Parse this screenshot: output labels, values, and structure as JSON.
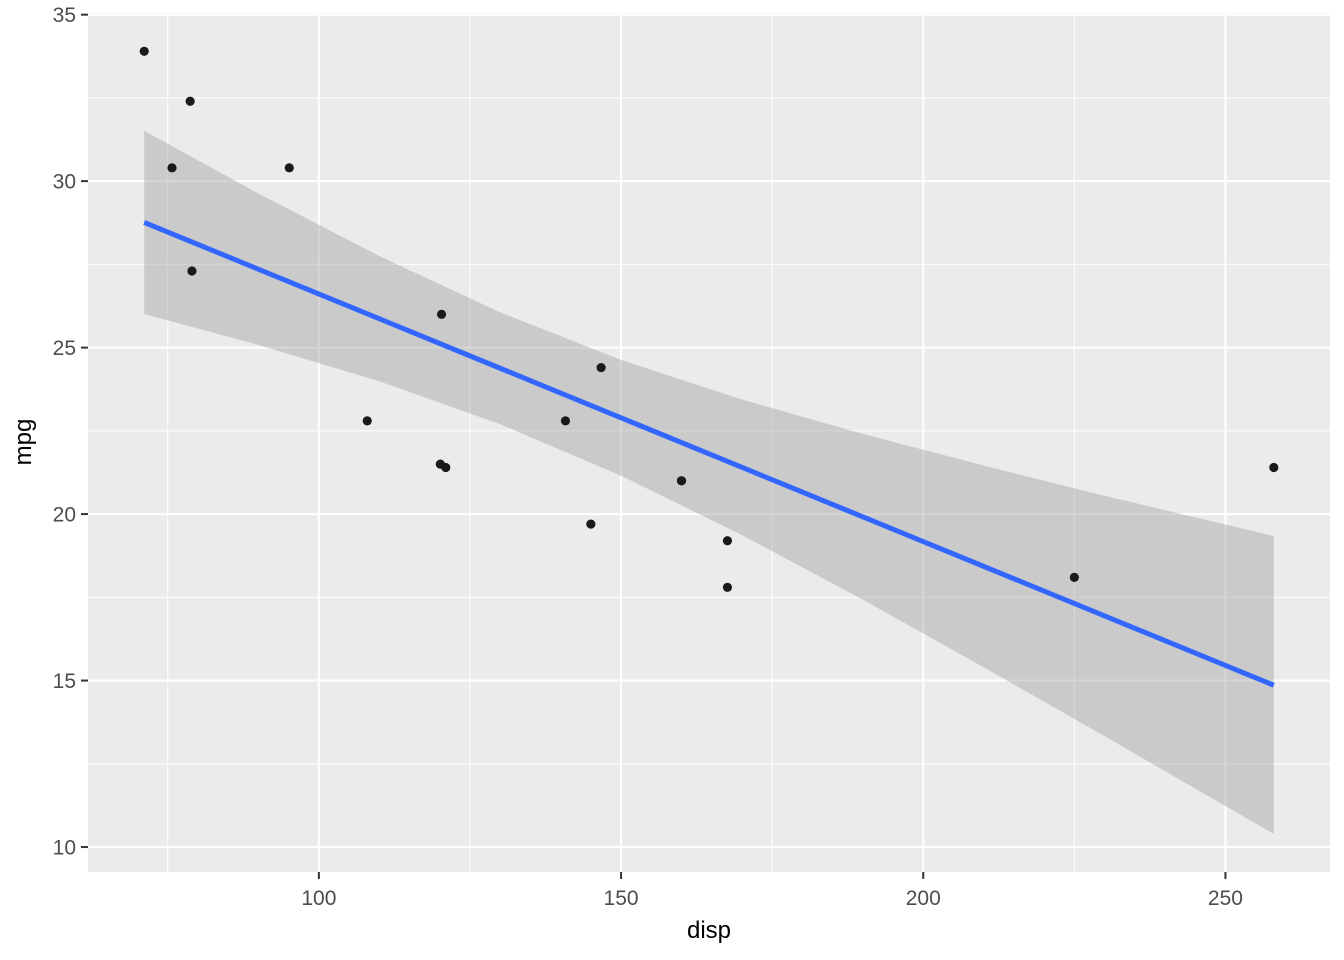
{
  "chart_data": {
    "type": "scatter",
    "title": "",
    "xlabel": "disp",
    "ylabel": "mpg",
    "xlim": [
      61.8,
      267.3
    ],
    "ylim": [
      9.25,
      35.05
    ],
    "x_ticks": [
      100,
      150,
      200,
      250
    ],
    "y_ticks": [
      10,
      15,
      20,
      25,
      30,
      35
    ],
    "x_minor_ticks": [
      75,
      125,
      175,
      225
    ],
    "y_minor_ticks": [
      12.5,
      17.5,
      22.5,
      27.5,
      32.5
    ],
    "grid": "on",
    "legend": "none",
    "points": [
      {
        "disp": 160.0,
        "mpg": 21.0
      },
      {
        "disp": 160.0,
        "mpg": 21.0
      },
      {
        "disp": 108.0,
        "mpg": 22.8
      },
      {
        "disp": 258.0,
        "mpg": 21.4
      },
      {
        "disp": 225.0,
        "mpg": 18.1
      },
      {
        "disp": 146.7,
        "mpg": 24.4
      },
      {
        "disp": 140.8,
        "mpg": 22.8
      },
      {
        "disp": 167.6,
        "mpg": 19.2
      },
      {
        "disp": 167.6,
        "mpg": 17.8
      },
      {
        "disp": 78.7,
        "mpg": 32.4
      },
      {
        "disp": 75.7,
        "mpg": 30.4
      },
      {
        "disp": 71.1,
        "mpg": 33.9
      },
      {
        "disp": 120.1,
        "mpg": 21.5
      },
      {
        "disp": 79.0,
        "mpg": 27.3
      },
      {
        "disp": 120.3,
        "mpg": 26.0
      },
      {
        "disp": 95.1,
        "mpg": 30.4
      },
      {
        "disp": 145.0,
        "mpg": 19.7
      },
      {
        "disp": 121.0,
        "mpg": 21.4
      }
    ],
    "smooth_line": {
      "method": "lm",
      "x": [
        71.1,
        258
      ],
      "y": [
        28.76,
        14.86
      ],
      "color": "#3366FF"
    },
    "ribbon": {
      "x": [
        71.1,
        90.0,
        110.0,
        130.0,
        150.0,
        170.0,
        190.0,
        210.0,
        230.0,
        258.0
      ],
      "upper": [
        31.51,
        29.63,
        27.75,
        26.06,
        24.63,
        23.44,
        22.41,
        21.46,
        20.55,
        19.34
      ],
      "lower": [
        26.01,
        25.08,
        23.99,
        22.7,
        21.15,
        19.37,
        17.43,
        15.4,
        13.33,
        10.39
      ],
      "fill": "#999999",
      "opacity": 0.4
    },
    "colors": {
      "background": "#FFFFFF",
      "panel_bg": "#EBEBEB",
      "grid_major": "#FFFFFF",
      "grid_minor": "#FFFFFF",
      "point": "#1A1A1A",
      "tick_label": "#4D4D4D",
      "tick_mark": "#333333",
      "axis_title": "#000000"
    }
  }
}
